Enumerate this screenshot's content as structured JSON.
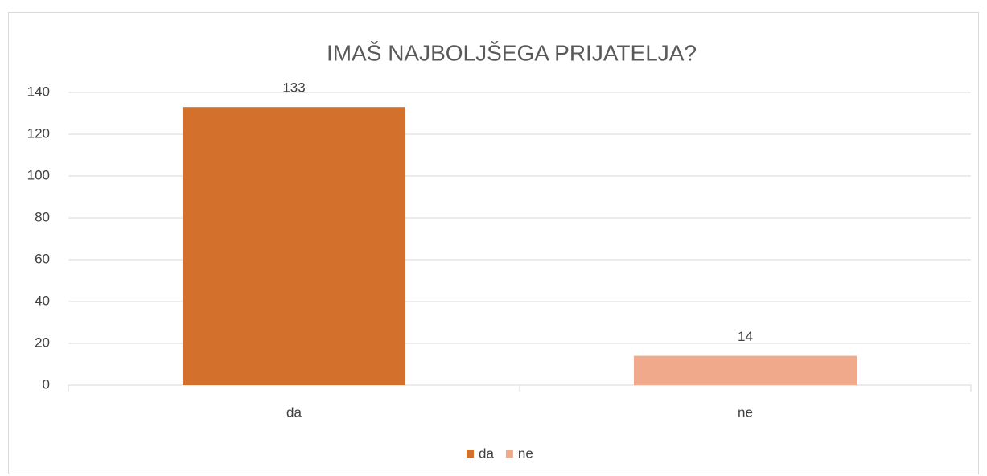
{
  "chart_data": {
    "type": "bar",
    "title": "IMAŠ NAJBOLJŠEGA PRIJATELJA?",
    "categories": [
      "da",
      "ne"
    ],
    "values": [
      133,
      14
    ],
    "colors": [
      "#d2702c",
      "#f0a98a"
    ],
    "ylim": [
      0,
      140
    ],
    "yticks": [
      0,
      20,
      40,
      60,
      80,
      100,
      120,
      140
    ],
    "grid": true,
    "legend": "bottom"
  }
}
